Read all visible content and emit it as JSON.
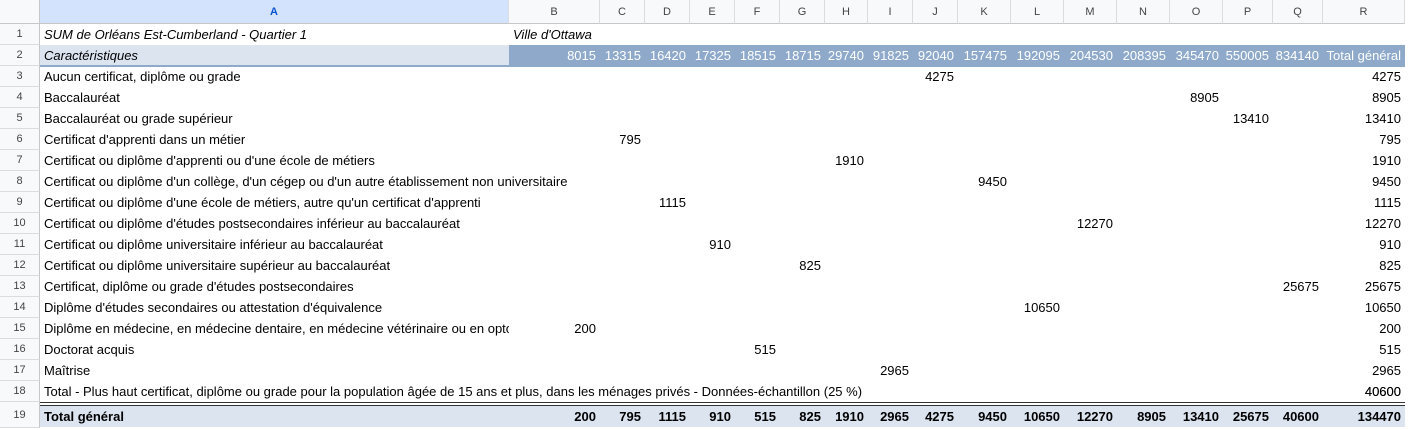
{
  "columns": [
    "A",
    "B",
    "C",
    "D",
    "E",
    "F",
    "G",
    "H",
    "I",
    "J",
    "K",
    "L",
    "M",
    "N",
    "O",
    "P",
    "Q",
    "R"
  ],
  "selected_column": "A",
  "row_numbers": [
    "1",
    "2",
    "3",
    "4",
    "5",
    "6",
    "7",
    "8",
    "9",
    "10",
    "11",
    "12",
    "13",
    "14",
    "15",
    "16",
    "17",
    "18",
    "19"
  ],
  "pivot": {
    "title": "SUM de Orléans Est-Cumberland - Quartier 1",
    "filter_label": "Ville d'Ottawa",
    "header_label": "Caractéristiques",
    "column_keys": [
      "8015",
      "13315",
      "16420",
      "17325",
      "18515",
      "18715",
      "29740",
      "91825",
      "92040",
      "157475",
      "192095",
      "204530",
      "208395",
      "345470",
      "550005",
      "834140"
    ],
    "grand_total_header": "Total général",
    "rows": [
      {
        "label": "Aucun certificat, diplôme ou grade",
        "col": 8,
        "value": "4275",
        "total": "4275"
      },
      {
        "label": "Baccalauréat",
        "col": 13,
        "value": "8905",
        "total": "8905"
      },
      {
        "label": "Baccalauréat ou grade supérieur",
        "col": 14,
        "value": "13410",
        "total": "13410"
      },
      {
        "label": "Certificat d'apprenti dans un métier",
        "col": 1,
        "value": "795",
        "total": "795"
      },
      {
        "label": "Certificat ou diplôme d'apprenti ou d'une école de métiers",
        "col": 6,
        "value": "1910",
        "total": "1910"
      },
      {
        "label": "Certificat ou diplôme d'un collège, d'un cégep ou d'un autre établissement non universitaire",
        "col": 9,
        "value": "9450",
        "total": "9450"
      },
      {
        "label": "Certificat ou diplôme d'une école de métiers, autre qu'un certificat d'apprenti",
        "col": 2,
        "value": "1115",
        "total": "1115"
      },
      {
        "label": "Certificat ou diplôme d'études postsecondaires inférieur au baccalauréat",
        "col": 11,
        "value": "12270",
        "total": "12270"
      },
      {
        "label": "Certificat ou diplôme universitaire inférieur au baccalauréat",
        "col": 3,
        "value": "910",
        "total": "910"
      },
      {
        "label": "Certificat ou diplôme universitaire supérieur au baccalauréat",
        "col": 5,
        "value": "825",
        "total": "825"
      },
      {
        "label": "Certificat, diplôme ou grade d'études postsecondaires",
        "col": 15,
        "value": "25675",
        "total": "25675"
      },
      {
        "label": "Diplôme d'études secondaires ou attestation d'équivalence",
        "col": 10,
        "value": "10650",
        "total": "10650"
      },
      {
        "label": "Diplôme en médecine, en médecine dentaire, en médecine vétérinaire ou en optométrie",
        "col": 0,
        "value": "200",
        "total": "200"
      },
      {
        "label": "Doctorat acquis",
        "col": 4,
        "value": "515",
        "total": "515"
      },
      {
        "label": "Maîtrise",
        "col": 7,
        "value": "2965",
        "total": "2965"
      },
      {
        "label": "Total - Plus haut certificat, diplôme ou grade pour la population âgée de 15 ans et plus, dans les ménages privés - Données-échantillon (25 %)",
        "col": 16,
        "value": "40600",
        "total": "40600"
      }
    ],
    "grand_total": {
      "label": "Total général",
      "values": [
        "200",
        "795",
        "1115",
        "910",
        "515",
        "825",
        "1910",
        "2965",
        "4275",
        "9450",
        "10650",
        "12270",
        "8905",
        "13410",
        "25675",
        "40600"
      ],
      "total": "134470"
    }
  },
  "colors": {
    "header_band": "#8ea9c9",
    "light_band": "#dce4f0",
    "grid_header_bg": "#f8f9fa",
    "selected_header_bg": "#d3e3fd"
  }
}
